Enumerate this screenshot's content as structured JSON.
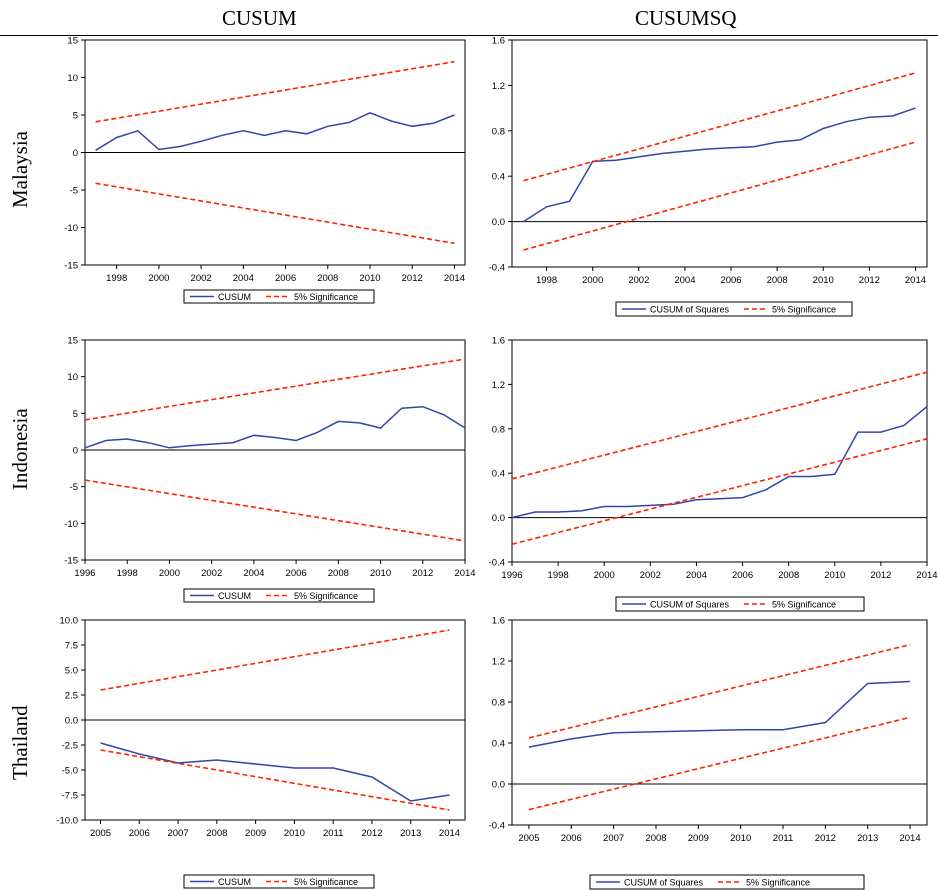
{
  "headers": {
    "left": "CUSUM",
    "right": "CUSUMSQ"
  },
  "rows": [
    "Malaysia",
    "Indonesia",
    "Thailand"
  ],
  "colors": {
    "series": "#3344aa",
    "bounds": "#ff2200",
    "axis": "#000000"
  },
  "chart_data": [
    {
      "id": "malaysia-cusum",
      "type": "line",
      "country": "Malaysia",
      "statistic": "CUSUM",
      "xlim": [
        1996.5,
        2014.5
      ],
      "yticks": [
        -15,
        -10,
        -5,
        0,
        5,
        10,
        15
      ],
      "ytick_labels": [
        "-15",
        "-10",
        "-5",
        "0",
        "5",
        "10",
        "15"
      ],
      "xticks": [
        1998,
        2000,
        2002,
        2004,
        2006,
        2008,
        2010,
        2012,
        2014
      ],
      "xtick_labels": [
        "1998",
        "2000",
        "2002",
        "2004",
        "2006",
        "2008",
        "2010",
        "2012",
        "2014"
      ],
      "legend": [
        "CUSUM",
        "5% Significance"
      ],
      "series": [
        {
          "name": "CUSUM",
          "style": "solid",
          "x": [
            1997,
            1998,
            1999,
            2000,
            2001,
            2002,
            2003,
            2004,
            2005,
            2006,
            2007,
            2008,
            2009,
            2010,
            2011,
            2012,
            2013,
            2014
          ],
          "y": [
            0.3,
            2.0,
            2.9,
            0.4,
            0.8,
            1.5,
            2.3,
            2.9,
            2.3,
            2.9,
            2.5,
            3.5,
            4.0,
            5.3,
            4.2,
            3.5,
            3.9,
            5.0
          ]
        },
        {
          "name": "5% Significance",
          "style": "dashed",
          "x": [
            1997,
            2014
          ],
          "y": [
            4.1,
            12.1
          ]
        },
        {
          "name": "5% Significance",
          "style": "dashed",
          "x": [
            1997,
            2014
          ],
          "y": [
            -4.1,
            -12.1
          ]
        }
      ]
    },
    {
      "id": "malaysia-cusumsq",
      "type": "line",
      "country": "Malaysia",
      "statistic": "CUSUMSQ",
      "xlim": [
        1996.5,
        2014.5
      ],
      "yticks": [
        -0.4,
        0.0,
        0.4,
        0.8,
        1.2,
        1.6
      ],
      "ytick_labels": [
        "-0.4",
        "0.0",
        "0.4",
        "0.8",
        "1.2",
        "1.6"
      ],
      "xticks": [
        1998,
        2000,
        2002,
        2004,
        2006,
        2008,
        2010,
        2012,
        2014
      ],
      "xtick_labels": [
        "1998",
        "2000",
        "2002",
        "2004",
        "2006",
        "2008",
        "2010",
        "2012",
        "2014"
      ],
      "legend": [
        "CUSUM of Squares",
        "5% Significance"
      ],
      "series": [
        {
          "name": "CUSUM of Squares",
          "style": "solid",
          "x": [
            1997,
            1998,
            1999,
            2000,
            2001,
            2002,
            2003,
            2004,
            2005,
            2006,
            2007,
            2008,
            2009,
            2010,
            2011,
            2012,
            2013,
            2014
          ],
          "y": [
            0.0,
            0.13,
            0.18,
            0.53,
            0.54,
            0.57,
            0.6,
            0.62,
            0.64,
            0.65,
            0.66,
            0.7,
            0.72,
            0.82,
            0.88,
            0.92,
            0.93,
            1.0
          ]
        },
        {
          "name": "5% Significance",
          "style": "dashed",
          "x": [
            1997,
            2014
          ],
          "y": [
            0.36,
            1.31
          ]
        },
        {
          "name": "5% Significance",
          "style": "dashed",
          "x": [
            1997,
            2014
          ],
          "y": [
            -0.25,
            0.7
          ]
        }
      ]
    },
    {
      "id": "indonesia-cusum",
      "type": "line",
      "country": "Indonesia",
      "statistic": "CUSUM",
      "xlim": [
        1996,
        2014
      ],
      "yticks": [
        -15,
        -10,
        -5,
        0,
        5,
        10,
        15
      ],
      "ytick_labels": [
        "-15",
        "-10",
        "-5",
        "0",
        "5",
        "10",
        "15"
      ],
      "xticks": [
        1996,
        1998,
        2000,
        2002,
        2004,
        2006,
        2008,
        2010,
        2012,
        2014
      ],
      "xtick_labels": [
        "1996",
        "1998",
        "2000",
        "2002",
        "2004",
        "2006",
        "2008",
        "2010",
        "2012",
        "2014"
      ],
      "legend": [
        "CUSUM",
        "5% Significance"
      ],
      "series": [
        {
          "name": "CUSUM",
          "style": "solid",
          "x": [
            1996,
            1997,
            1998,
            1999,
            2000,
            2001,
            2002,
            2003,
            2004,
            2005,
            2006,
            2007,
            2008,
            2009,
            2010,
            2011,
            2012,
            2013,
            2014
          ],
          "y": [
            0.3,
            1.3,
            1.5,
            1.0,
            0.3,
            0.6,
            0.8,
            1.0,
            2.0,
            1.7,
            1.3,
            2.4,
            3.9,
            3.7,
            3.0,
            5.7,
            5.9,
            4.8,
            3.0
          ]
        },
        {
          "name": "5% Significance",
          "style": "dashed",
          "x": [
            1996,
            2014
          ],
          "y": [
            4.1,
            12.4
          ]
        },
        {
          "name": "5% Significance",
          "style": "dashed",
          "x": [
            1996,
            2014
          ],
          "y": [
            -4.1,
            -12.4
          ]
        }
      ]
    },
    {
      "id": "indonesia-cusumsq",
      "type": "line",
      "country": "Indonesia",
      "statistic": "CUSUMSQ",
      "xlim": [
        1996,
        2014
      ],
      "yticks": [
        -0.4,
        0.0,
        0.4,
        0.8,
        1.2,
        1.6
      ],
      "ytick_labels": [
        "-0.4",
        "0.0",
        "0.4",
        "0.8",
        "1.2",
        "1.6"
      ],
      "xticks": [
        1996,
        1998,
        2000,
        2002,
        2004,
        2006,
        2008,
        2010,
        2012,
        2014
      ],
      "xtick_labels": [
        "1996",
        "1998",
        "2000",
        "2002",
        "2004",
        "2006",
        "2008",
        "2010",
        "2012",
        "2014"
      ],
      "legend": [
        "CUSUM of Squares",
        "5% Significance"
      ],
      "series": [
        {
          "name": "CUSUM of Squares",
          "style": "solid",
          "x": [
            1996,
            1997,
            1998,
            1999,
            2000,
            2001,
            2002,
            2003,
            2004,
            2005,
            2006,
            2007,
            2008,
            2009,
            2010,
            2011,
            2012,
            2013,
            2014
          ],
          "y": [
            0.0,
            0.05,
            0.05,
            0.06,
            0.1,
            0.1,
            0.11,
            0.12,
            0.16,
            0.17,
            0.18,
            0.25,
            0.37,
            0.37,
            0.39,
            0.77,
            0.77,
            0.83,
            1.0
          ]
        },
        {
          "name": "5% Significance",
          "style": "dashed",
          "x": [
            1996,
            2014
          ],
          "y": [
            0.35,
            1.31
          ]
        },
        {
          "name": "5% Significance",
          "style": "dashed",
          "x": [
            1996,
            2014
          ],
          "y": [
            -0.24,
            0.71
          ]
        }
      ]
    },
    {
      "id": "thailand-cusum",
      "type": "line",
      "country": "Thailand",
      "statistic": "CUSUM",
      "xlim": [
        2004.6,
        2014.4
      ],
      "yticks": [
        -10,
        -7.5,
        -5,
        -2.5,
        0,
        2.5,
        5,
        7.5,
        10
      ],
      "ytick_labels": [
        "-10.0",
        "-7.5",
        "-5.0",
        "-2.5",
        "0.0",
        "2.5",
        "5.0",
        "7.5",
        "10.0"
      ],
      "xticks": [
        2005,
        2006,
        2007,
        2008,
        2009,
        2010,
        2011,
        2012,
        2013,
        2014
      ],
      "xtick_labels": [
        "2005",
        "2006",
        "2007",
        "2008",
        "2009",
        "2010",
        "2011",
        "2012",
        "2013",
        "2014"
      ],
      "legend": [
        "CUSUM",
        "5% Significance"
      ],
      "series": [
        {
          "name": "CUSUM",
          "style": "solid",
          "x": [
            2005,
            2006,
            2007,
            2008,
            2009,
            2010,
            2011,
            2012,
            2013,
            2014
          ],
          "y": [
            -2.3,
            -3.4,
            -4.3,
            -4.0,
            -4.4,
            -4.8,
            -4.8,
            -5.7,
            -8.1,
            -7.5
          ]
        },
        {
          "name": "5% Significance",
          "style": "dashed",
          "x": [
            2005,
            2014
          ],
          "y": [
            3.0,
            9.0
          ]
        },
        {
          "name": "5% Significance",
          "style": "dashed",
          "x": [
            2005,
            2014
          ],
          "y": [
            -3.0,
            -9.0
          ]
        }
      ]
    },
    {
      "id": "thailand-cusumsq",
      "type": "line",
      "country": "Thailand",
      "statistic": "CUSUMSQ",
      "xlim": [
        2004.6,
        2014.4
      ],
      "yticks": [
        -0.4,
        0.0,
        0.4,
        0.8,
        1.2,
        1.6
      ],
      "ytick_labels": [
        "-0.4",
        "0.0",
        "0.4",
        "0.8",
        "1.2",
        "1.6"
      ],
      "xticks": [
        2005,
        2006,
        2007,
        2008,
        2009,
        2010,
        2011,
        2012,
        2013,
        2014
      ],
      "xtick_labels": [
        "2005",
        "2006",
        "2007",
        "2008",
        "2009",
        "2010",
        "2011",
        "2012",
        "2013",
        "2014"
      ],
      "legend": [
        "CUSUM of Squares",
        "5% Significance"
      ],
      "series": [
        {
          "name": "CUSUM of Squares",
          "style": "solid",
          "x": [
            2005,
            2006,
            2007,
            2008,
            2009,
            2010,
            2011,
            2012,
            2013,
            2014
          ],
          "y": [
            0.36,
            0.44,
            0.5,
            0.51,
            0.52,
            0.53,
            0.53,
            0.6,
            0.98,
            1.0
          ]
        },
        {
          "name": "5% Significance",
          "style": "dashed",
          "x": [
            2005,
            2014
          ],
          "y": [
            0.45,
            1.36
          ]
        },
        {
          "name": "5% Significance",
          "style": "dashed",
          "x": [
            2005,
            2014
          ],
          "y": [
            -0.25,
            0.65
          ]
        }
      ]
    }
  ]
}
